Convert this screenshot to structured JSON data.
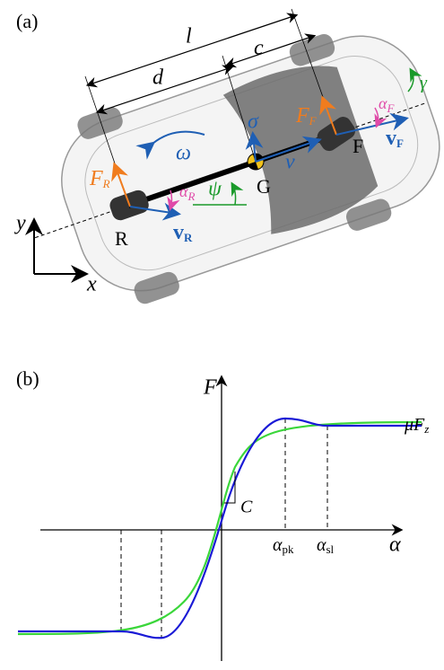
{
  "panel_a": {
    "label": "(a)",
    "dim_l": "l",
    "dim_c": "c",
    "dim_d": "d",
    "omega": "ω",
    "sigma": "σ",
    "v": "v",
    "G": "G",
    "F": "F",
    "R": "R",
    "F_F": {
      "main": "F",
      "sub": "F"
    },
    "F_R": {
      "main": "F",
      "sub": "R"
    },
    "alpha_F": {
      "main": "α",
      "sub": "F"
    },
    "alpha_R": {
      "main": "α",
      "sub": "R"
    },
    "psi": "ψ",
    "gamma": "γ",
    "v_F": {
      "main": "v",
      "sub": "F"
    },
    "v_R": {
      "main": "v",
      "sub": "R"
    },
    "axis_x": "x",
    "axis_y": "y"
  },
  "panel_b": {
    "label": "(b)",
    "axis_F": "F",
    "slope": "C",
    "mu_Fz": {
      "main": "μF",
      "sub": "z"
    },
    "alpha_pk": {
      "main": "α",
      "sub": "pk"
    },
    "alpha_sl": {
      "main": "α",
      "sub": "sl"
    },
    "axis_alpha": "α"
  }
}
